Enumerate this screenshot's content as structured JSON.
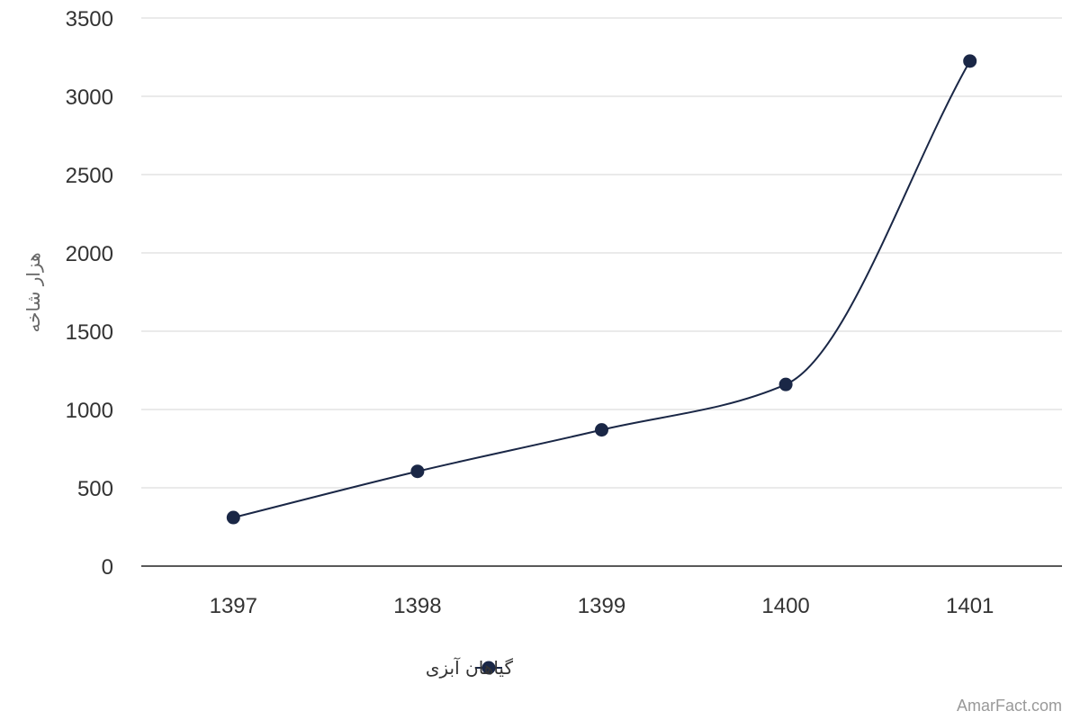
{
  "chart_data": {
    "type": "line",
    "categories": [
      "1397",
      "1398",
      "1399",
      "1400",
      "1401"
    ],
    "series": [
      {
        "name": "گیاهان آبزی",
        "values": [
          310,
          605,
          870,
          1160,
          3225
        ],
        "color": "#1a2746"
      }
    ],
    "ylabel": "هزار شاخه",
    "xlabel": "",
    "ylim": [
      0,
      3500
    ],
    "yticks": [
      0,
      500,
      1000,
      1500,
      2000,
      2500,
      3000,
      3500
    ],
    "grid": true,
    "legend": "bottom-center"
  },
  "watermark": "AmarFact.com",
  "colors": {
    "series": "#1a2746",
    "grid": "#dedede",
    "axis": "#222222"
  }
}
